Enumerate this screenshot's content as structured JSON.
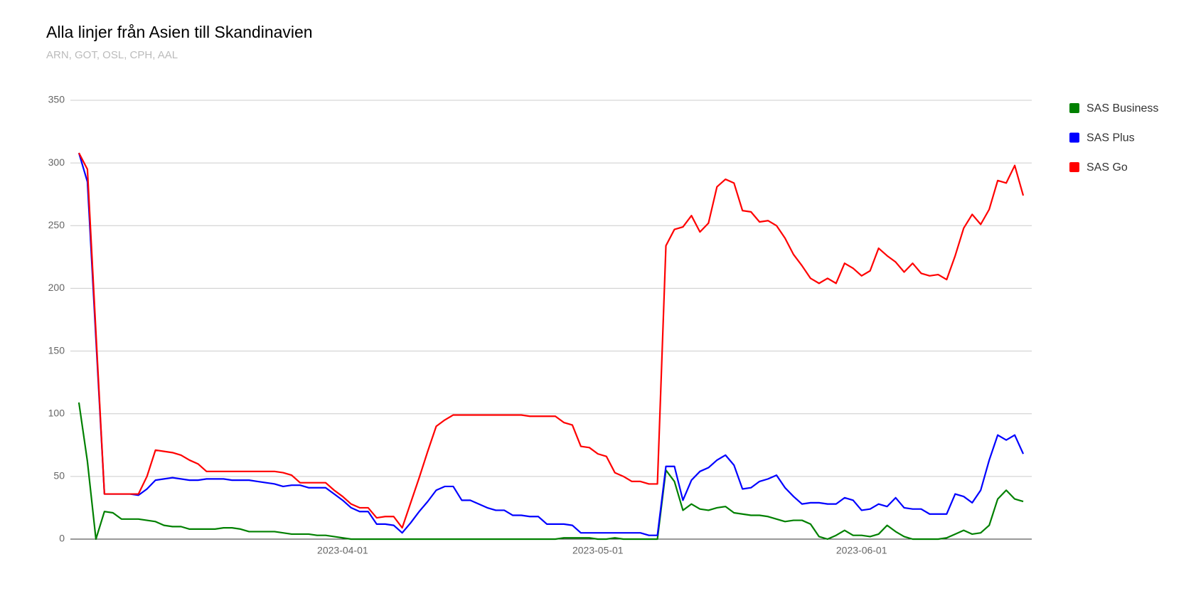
{
  "chart_data": {
    "type": "line",
    "title": "Alla linjer från Asien till Skandinavien",
    "subtitle": "ARN, GOT, OSL, CPH, AAL",
    "x": [
      "2023-03-01",
      "2023-03-02",
      "2023-03-03",
      "2023-03-04",
      "2023-03-05",
      "2023-03-06",
      "2023-03-07",
      "2023-03-08",
      "2023-03-09",
      "2023-03-10",
      "2023-03-11",
      "2023-03-12",
      "2023-03-13",
      "2023-03-14",
      "2023-03-15",
      "2023-03-16",
      "2023-03-17",
      "2023-03-18",
      "2023-03-19",
      "2023-03-20",
      "2023-03-21",
      "2023-03-22",
      "2023-03-23",
      "2023-03-24",
      "2023-03-25",
      "2023-03-26",
      "2023-03-27",
      "2023-03-28",
      "2023-03-29",
      "2023-03-30",
      "2023-03-31",
      "2023-04-01",
      "2023-04-02",
      "2023-04-03",
      "2023-04-04",
      "2023-04-05",
      "2023-04-06",
      "2023-04-07",
      "2023-04-08",
      "2023-04-09",
      "2023-04-10",
      "2023-04-11",
      "2023-04-12",
      "2023-04-13",
      "2023-04-14",
      "2023-04-15",
      "2023-04-16",
      "2023-04-17",
      "2023-04-18",
      "2023-04-19",
      "2023-04-20",
      "2023-04-21",
      "2023-04-22",
      "2023-04-23",
      "2023-04-24",
      "2023-04-25",
      "2023-04-26",
      "2023-04-27",
      "2023-04-28",
      "2023-04-29",
      "2023-04-30",
      "2023-05-01",
      "2023-05-02",
      "2023-05-03",
      "2023-05-04",
      "2023-05-05",
      "2023-05-06",
      "2023-05-07",
      "2023-05-08",
      "2023-05-09",
      "2023-05-10",
      "2023-05-11",
      "2023-05-12",
      "2023-05-13",
      "2023-05-14",
      "2023-05-15",
      "2023-05-16",
      "2023-05-17",
      "2023-05-18",
      "2023-05-19",
      "2023-05-20",
      "2023-05-21",
      "2023-05-22",
      "2023-05-23",
      "2023-05-24",
      "2023-05-25",
      "2023-05-26",
      "2023-05-27",
      "2023-05-28",
      "2023-05-29",
      "2023-05-30",
      "2023-05-31",
      "2023-06-01",
      "2023-06-02",
      "2023-06-03",
      "2023-06-04",
      "2023-06-05",
      "2023-06-06",
      "2023-06-07",
      "2023-06-08",
      "2023-06-09",
      "2023-06-10",
      "2023-06-11",
      "2023-06-12",
      "2023-06-13",
      "2023-06-14",
      "2023-06-15",
      "2023-06-16",
      "2023-06-17",
      "2023-06-18",
      "2023-06-19",
      "2023-06-20"
    ],
    "series": [
      {
        "name": "SAS Business",
        "color": "green",
        "values": [
          109,
          62,
          0,
          22,
          21,
          16,
          16,
          16,
          15,
          14,
          11,
          10,
          10,
          8,
          8,
          8,
          8,
          9,
          9,
          8,
          6,
          6,
          6,
          6,
          5,
          4,
          4,
          4,
          3,
          3,
          2,
          1,
          0,
          0,
          0,
          0,
          0,
          0,
          0,
          0,
          0,
          0,
          0,
          0,
          0,
          0,
          0,
          0,
          0,
          0,
          0,
          0,
          0,
          0,
          0,
          0,
          0,
          1,
          1,
          1,
          1,
          0,
          0,
          1,
          0,
          0,
          0,
          0,
          0,
          55,
          46,
          23,
          28,
          24,
          23,
          25,
          26,
          21,
          20,
          19,
          19,
          18,
          16,
          14,
          15,
          15,
          12,
          2,
          0,
          3,
          7,
          3,
          3,
          2,
          4,
          11,
          6,
          2,
          0,
          0,
          0,
          0,
          1,
          4,
          7,
          4,
          5,
          11,
          32,
          39,
          32,
          30
        ]
      },
      {
        "name": "SAS Plus",
        "color": "blue",
        "values": [
          308,
          285,
          160,
          36,
          36,
          36,
          36,
          35,
          40,
          47,
          48,
          49,
          48,
          47,
          47,
          48,
          48,
          48,
          47,
          47,
          47,
          46,
          45,
          44,
          42,
          43,
          43,
          41,
          41,
          41,
          36,
          31,
          25,
          22,
          22,
          12,
          12,
          11,
          5,
          13,
          22,
          30,
          39,
          42,
          42,
          31,
          31,
          28,
          25,
          23,
          23,
          19,
          19,
          18,
          18,
          12,
          12,
          12,
          11,
          5,
          5,
          5,
          5,
          5,
          5,
          5,
          5,
          3,
          3,
          58,
          58,
          31,
          47,
          54,
          57,
          63,
          67,
          59,
          40,
          41,
          46,
          48,
          51,
          41,
          34,
          28,
          29,
          29,
          28,
          28,
          33,
          31,
          23,
          24,
          28,
          26,
          33,
          25,
          24,
          24,
          20,
          20,
          20,
          36,
          34,
          29,
          39,
          63,
          83,
          79,
          83,
          68
        ]
      },
      {
        "name": "SAS Go",
        "color": "red",
        "values": [
          308,
          295,
          165,
          36,
          36,
          36,
          36,
          36,
          50,
          71,
          70,
          69,
          67,
          63,
          60,
          54,
          54,
          54,
          54,
          54,
          54,
          54,
          54,
          54,
          53,
          51,
          45,
          45,
          45,
          45,
          39,
          34,
          28,
          25,
          25,
          17,
          18,
          18,
          9,
          29,
          49,
          70,
          90,
          95,
          99,
          99,
          99,
          99,
          99,
          99,
          99,
          99,
          99,
          98,
          98,
          98,
          98,
          93,
          91,
          74,
          73,
          68,
          66,
          53,
          50,
          46,
          46,
          44,
          44,
          234,
          247,
          249,
          258,
          245,
          252,
          281,
          287,
          284,
          262,
          261,
          253,
          254,
          250,
          240,
          227,
          218,
          208,
          204,
          208,
          204,
          220,
          216,
          210,
          214,
          232,
          226,
          221,
          213,
          220,
          212,
          210,
          211,
          207,
          226,
          248,
          259,
          251,
          263,
          286,
          284,
          298,
          274
        ]
      }
    ],
    "xlim": [
      "2023-02-28",
      "2023-06-21"
    ],
    "xticks": [
      "2023-04-01",
      "2023-05-01",
      "2023-06-01"
    ],
    "ylim": [
      0,
      350
    ],
    "yticks": [
      0,
      50,
      100,
      150,
      200,
      250,
      300,
      350
    ],
    "grid": true,
    "legend": "right"
  }
}
